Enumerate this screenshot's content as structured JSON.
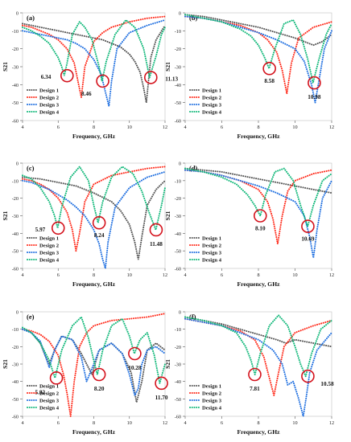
{
  "figure": {
    "xlabel": "Frequency, GHz",
    "ylabel": "S21",
    "xlim": [
      4,
      12
    ],
    "ylim": [
      -60,
      0
    ],
    "xticks": [
      4,
      6,
      8,
      10,
      12
    ],
    "yticks": [
      0,
      -10,
      -20,
      -30,
      -40,
      -50,
      -60
    ],
    "legend_position": "bottom-left",
    "series_names": [
      "Design 1",
      "Design 2",
      "Design 3",
      "Design 4"
    ],
    "series_colors": [
      "#555555",
      "#ff2a1a",
      "#1f6fe0",
      "#12b87a"
    ],
    "marker_color": "#d4111b"
  },
  "chart_data": [
    {
      "panel": "(a)",
      "type": "line",
      "xlabel": "Frequency, GHz",
      "ylabel": "S21",
      "xlim": [
        4,
        12
      ],
      "ylim": [
        -60,
        0
      ],
      "annotations": [
        {
          "text": "6.34",
          "x": 6.5,
          "y": -35
        },
        {
          "text": "8.46",
          "x": 8.5,
          "y": -38
        },
        {
          "text": "11.13",
          "x": 11.2,
          "y": -36
        }
      ],
      "series": [
        {
          "name": "Design 1",
          "x": [
            4,
            4.5,
            5,
            5.5,
            6,
            6.5,
            7,
            7.5,
            8,
            8.5,
            9,
            9.5,
            10,
            10.3,
            10.6,
            10.8,
            10.95,
            11.05,
            11.2,
            11.5,
            12
          ],
          "y": [
            -6,
            -7,
            -8,
            -9,
            -10,
            -11,
            -12,
            -13,
            -14,
            -15,
            -17,
            -19,
            -23,
            -27,
            -33,
            -42,
            -50,
            -40,
            -25,
            -15,
            -7
          ]
        },
        {
          "name": "Design 2",
          "x": [
            4,
            4.5,
            5,
            5.5,
            6,
            6.5,
            6.9,
            7.15,
            7.3,
            7.5,
            8,
            8.5,
            9,
            10,
            11,
            12
          ],
          "y": [
            -7,
            -8,
            -10,
            -12,
            -15,
            -20,
            -28,
            -40,
            -47,
            -30,
            -16,
            -11,
            -8,
            -5,
            -3,
            -2
          ]
        },
        {
          "name": "Design 3",
          "x": [
            4,
            4.5,
            5,
            5.5,
            6,
            6.5,
            7,
            7.5,
            8,
            8.4,
            8.7,
            8.85,
            9,
            9.3,
            10,
            11,
            12
          ],
          "y": [
            -10,
            -11,
            -12,
            -13,
            -14,
            -15,
            -17,
            -20,
            -26,
            -34,
            -46,
            -52,
            -38,
            -20,
            -11,
            -7,
            -4
          ]
        },
        {
          "name": "Design 4",
          "x": [
            4,
            4.5,
            5,
            5.5,
            6,
            6.2,
            6.34,
            6.5,
            6.8,
            7.2,
            7.5,
            7.9,
            8.3,
            8.46,
            8.7,
            9.2,
            9.8,
            10.3,
            10.8,
            11.13,
            11.5,
            11.8,
            12
          ],
          "y": [
            -8,
            -10,
            -13,
            -17,
            -25,
            -30,
            -35,
            -28,
            -12,
            -5,
            -8,
            -15,
            -30,
            -38,
            -27,
            -12,
            -4,
            -8,
            -20,
            -36,
            -24,
            -12,
            -8
          ]
        }
      ]
    },
    {
      "panel": "(b)",
      "type": "line",
      "xlabel": "Frequency, GHz",
      "ylabel": "S21",
      "xlim": [
        4,
        12
      ],
      "ylim": [
        -60,
        0
      ],
      "annotations": [
        {
          "text": "8.58",
          "x": 8.6,
          "y": -31
        },
        {
          "text": "10.98",
          "x": 11.05,
          "y": -39
        }
      ],
      "series": [
        {
          "name": "Design 1",
          "x": [
            4,
            5,
            6,
            7,
            8,
            9,
            10,
            10.5,
            11,
            11.5,
            12
          ],
          "y": [
            -1,
            -2,
            -4,
            -6,
            -8,
            -11,
            -14,
            -16,
            -18,
            -16,
            -12
          ]
        },
        {
          "name": "Design 2",
          "x": [
            4,
            5,
            6,
            7,
            8,
            8.5,
            9,
            9.3,
            9.55,
            9.8,
            10.2,
            11,
            12
          ],
          "y": [
            -2,
            -3,
            -5,
            -7,
            -11,
            -15,
            -22,
            -32,
            -45,
            -28,
            -14,
            -8,
            -5
          ]
        },
        {
          "name": "Design 3",
          "x": [
            4,
            5,
            6,
            7,
            8,
            9,
            10,
            10.5,
            10.9,
            11.1,
            11.3,
            11.6,
            12
          ],
          "y": [
            -2,
            -3,
            -5,
            -8,
            -11,
            -15,
            -20,
            -27,
            -40,
            -50,
            -38,
            -20,
            -10
          ]
        },
        {
          "name": "Design 4",
          "x": [
            4,
            5,
            6,
            7,
            7.6,
            8,
            8.3,
            8.58,
            8.9,
            9.4,
            9.9,
            10.3,
            10.7,
            10.98,
            11.3,
            11.7,
            12
          ],
          "y": [
            -1,
            -3,
            -5,
            -9,
            -13,
            -18,
            -24,
            -31,
            -20,
            -6,
            -4,
            -12,
            -26,
            -39,
            -26,
            -12,
            -6
          ]
        }
      ]
    },
    {
      "panel": "(c)",
      "type": "line",
      "xlabel": "Frequency, GHz",
      "ylabel": "S21",
      "xlim": [
        4,
        12
      ],
      "ylim": [
        -60,
        0
      ],
      "annotations": [
        {
          "text": "5.97",
          "x": 6.0,
          "y": -37
        },
        {
          "text": "8.24",
          "x": 8.3,
          "y": -34
        },
        {
          "text": "11.48",
          "x": 11.5,
          "y": -38
        }
      ],
      "series": [
        {
          "name": "Design 1",
          "x": [
            4,
            5,
            6,
            7,
            8,
            9,
            9.5,
            10,
            10.3,
            10.5,
            10.7,
            11,
            11.5,
            12
          ],
          "y": [
            -8,
            -9,
            -11,
            -13,
            -17,
            -22,
            -27,
            -35,
            -45,
            -55,
            -42,
            -24,
            -15,
            -10
          ]
        },
        {
          "name": "Design 2",
          "x": [
            4,
            4.5,
            5,
            5.5,
            6,
            6.5,
            6.8,
            7.0,
            7.2,
            7.5,
            8,
            9,
            10,
            11,
            12
          ],
          "y": [
            -9,
            -10,
            -12,
            -15,
            -20,
            -28,
            -38,
            -50,
            -40,
            -22,
            -12,
            -7,
            -5,
            -3,
            -2
          ]
        },
        {
          "name": "Design 3",
          "x": [
            4,
            4.5,
            5,
            5.5,
            6,
            6.5,
            7,
            7.5,
            8,
            8.3,
            8.5,
            8.65,
            8.8,
            9.2,
            10,
            11,
            12
          ],
          "y": [
            -10,
            -11,
            -13,
            -15,
            -18,
            -21,
            -25,
            -30,
            -38,
            -46,
            -55,
            -62,
            -45,
            -25,
            -14,
            -8,
            -5
          ]
        },
        {
          "name": "Design 4",
          "x": [
            4,
            4.5,
            5,
            5.5,
            5.8,
            5.97,
            6.2,
            6.7,
            7.2,
            7.7,
            8.0,
            8.24,
            8.5,
            9,
            9.6,
            10.2,
            10.7,
            11.1,
            11.48,
            11.8,
            12
          ],
          "y": [
            -7,
            -9,
            -14,
            -22,
            -30,
            -37,
            -25,
            -8,
            -2,
            -10,
            -24,
            -34,
            -22,
            -8,
            -2,
            -6,
            -16,
            -28,
            -38,
            -24,
            -14
          ]
        }
      ]
    },
    {
      "panel": "(d)",
      "type": "line",
      "xlabel": "Frequency, GHz",
      "ylabel": "S21",
      "xlim": [
        4,
        12
      ],
      "ylim": [
        -60,
        0
      ],
      "annotations": [
        {
          "text": "8.10",
          "x": 8.1,
          "y": -30
        },
        {
          "text": "10.69",
          "x": 10.7,
          "y": -36
        }
      ],
      "series": [
        {
          "name": "Design 1",
          "x": [
            4,
            5,
            6,
            7,
            8,
            9,
            10,
            11,
            12
          ],
          "y": [
            -3,
            -4,
            -5,
            -7,
            -9,
            -11,
            -13,
            -15,
            -17
          ]
        },
        {
          "name": "Design 2",
          "x": [
            4,
            5,
            6,
            7,
            8,
            8.5,
            8.8,
            9.05,
            9.3,
            9.6,
            10,
            11,
            12
          ],
          "y": [
            -4,
            -5,
            -7,
            -10,
            -15,
            -22,
            -32,
            -46,
            -30,
            -16,
            -10,
            -6,
            -4
          ]
        },
        {
          "name": "Design 3",
          "x": [
            4,
            5,
            6,
            7,
            8,
            9,
            10,
            10.5,
            10.8,
            11.0,
            11.2,
            11.5,
            12
          ],
          "y": [
            -4,
            -5,
            -7,
            -10,
            -13,
            -17,
            -22,
            -30,
            -42,
            -54,
            -38,
            -20,
            -10
          ]
        },
        {
          "name": "Design 4",
          "x": [
            4,
            5,
            6,
            6.8,
            7.4,
            7.8,
            8.1,
            8.4,
            8.9,
            9.4,
            9.9,
            10.3,
            10.69,
            11.0,
            11.5,
            12
          ],
          "y": [
            -3,
            -5,
            -8,
            -12,
            -18,
            -24,
            -30,
            -18,
            -5,
            -3,
            -10,
            -24,
            -36,
            -24,
            -10,
            -6
          ]
        }
      ]
    },
    {
      "panel": "(e)",
      "type": "line",
      "xlabel": "Frequency, GHz",
      "ylabel": "S21",
      "xlim": [
        4,
        12
      ],
      "ylim": [
        -60,
        0
      ],
      "annotations": [
        {
          "text": "5.82",
          "x": 5.9,
          "y": -38
        },
        {
          "text": "8.20",
          "x": 8.3,
          "y": -36
        },
        {
          "text": "10.28",
          "x": 10.3,
          "y": -24
        },
        {
          "text": "11.70",
          "x": 11.8,
          "y": -41
        }
      ],
      "series": [
        {
          "name": "Design 1",
          "x": [
            4,
            4.5,
            5,
            5.3,
            5.5,
            5.8,
            6.2,
            6.8,
            7.3,
            7.6,
            7.9,
            8.3,
            9,
            9.6,
            10.1,
            10.4,
            10.7,
            11,
            11.5,
            12
          ],
          "y": [
            -10,
            -12,
            -18,
            -26,
            -30,
            -22,
            -14,
            -16,
            -24,
            -30,
            -36,
            -22,
            -18,
            -24,
            -35,
            -52,
            -40,
            -22,
            -18,
            -22
          ]
        },
        {
          "name": "Design 2",
          "x": [
            4,
            4.5,
            5,
            5.5,
            6,
            6.3,
            6.5,
            6.7,
            6.9,
            7.2,
            7.6,
            8,
            9,
            10,
            11,
            12
          ],
          "y": [
            -10,
            -11,
            -13,
            -17,
            -25,
            -36,
            -47,
            -60,
            -40,
            -20,
            -12,
            -8,
            -5,
            -4,
            -3,
            -1
          ]
        },
        {
          "name": "Design 3",
          "x": [
            4,
            4.5,
            5,
            5.3,
            5.5,
            5.8,
            6.2,
            6.8,
            7.3,
            7.6,
            8,
            8.3,
            9,
            9.6,
            10,
            10.3,
            10.5,
            10.7,
            11,
            11.5,
            12
          ],
          "y": [
            -10,
            -12,
            -17,
            -26,
            -32,
            -22,
            -14,
            -16,
            -26,
            -40,
            -30,
            -22,
            -18,
            -24,
            -36,
            -48,
            -44,
            -30,
            -22,
            -20,
            -24
          ]
        },
        {
          "name": "Design 4",
          "x": [
            4,
            4.5,
            5,
            5.5,
            5.82,
            6.2,
            6.8,
            7.3,
            7.7,
            8.0,
            8.2,
            8.5,
            9,
            9.6,
            10.0,
            10.28,
            10.6,
            11.0,
            11.4,
            11.7,
            12
          ],
          "y": [
            -9,
            -12,
            -18,
            -28,
            -38,
            -22,
            -8,
            -3,
            -15,
            -28,
            -36,
            -22,
            -8,
            -4,
            -14,
            -24,
            -16,
            -12,
            -25,
            -41,
            -30
          ]
        }
      ]
    },
    {
      "panel": "(f)",
      "type": "line",
      "xlabel": "Frequency, GHz",
      "ylabel": "S21",
      "xlim": [
        4,
        12
      ],
      "ylim": [
        -60,
        0
      ],
      "annotations": [
        {
          "text": "7.81",
          "x": 7.8,
          "y": -36
        },
        {
          "text": "10.58",
          "x": 10.7,
          "y": -37
        }
      ],
      "series": [
        {
          "name": "Design 1",
          "x": [
            4,
            5,
            6,
            7,
            8,
            9,
            9.5,
            10,
            11,
            12
          ],
          "y": [
            -3,
            -5,
            -7,
            -10,
            -13,
            -16,
            -18,
            -16,
            -18,
            -20
          ]
        },
        {
          "name": "Design 2",
          "x": [
            4,
            5,
            6,
            7,
            7.8,
            8.3,
            8.6,
            8.85,
            9.1,
            9.4,
            10,
            11,
            12
          ],
          "y": [
            -4,
            -6,
            -8,
            -11,
            -16,
            -26,
            -38,
            -48,
            -35,
            -20,
            -12,
            -8,
            -5
          ]
        },
        {
          "name": "Design 3",
          "x": [
            4,
            5,
            6,
            7,
            8,
            8.8,
            9.3,
            9.6,
            9.9,
            10.2,
            10.45,
            10.6,
            10.8,
            11.2,
            12
          ],
          "y": [
            -4,
            -6,
            -8,
            -12,
            -16,
            -22,
            -30,
            -42,
            -40,
            -50,
            -60,
            -50,
            -35,
            -22,
            -12
          ]
        },
        {
          "name": "Design 4",
          "x": [
            4,
            5,
            6,
            6.8,
            7.3,
            7.6,
            7.81,
            8.1,
            8.6,
            9.1,
            9.6,
            10.0,
            10.3,
            10.58,
            10.9,
            11.4,
            12
          ],
          "y": [
            -3,
            -5,
            -8,
            -12,
            -20,
            -28,
            -36,
            -24,
            -8,
            -2,
            -8,
            -20,
            -30,
            -37,
            -24,
            -10,
            -5
          ]
        }
      ]
    }
  ]
}
